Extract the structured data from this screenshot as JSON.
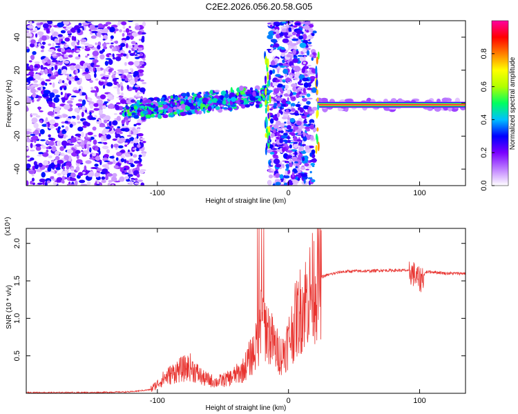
{
  "title": "C2E2.2026.056.20.58.G05",
  "chart_data": [
    {
      "type": "heatmap",
      "title": "",
      "xlabel": "Height of straight line (km)",
      "ylabel": "Frequency (Hz)",
      "xlim": [
        -200,
        135
      ],
      "ylim": [
        -50,
        50
      ],
      "xticks": [
        -100,
        0,
        100
      ],
      "xtick_labels": [
        "-100",
        "0",
        "100"
      ],
      "yticks": [
        -40,
        -20,
        0,
        20,
        40
      ],
      "ytick_labels": [
        "-40",
        "-20",
        "0",
        "20",
        "40"
      ],
      "colorbar": {
        "label": "Normalized spectral amplitude",
        "range": [
          0,
          1
        ],
        "ticks": [
          0,
          0.2,
          0.4,
          0.6,
          0.8
        ],
        "tick_labels": [
          "0.0",
          "0.2",
          "0.4",
          "0.6",
          "0.8"
        ],
        "colors": [
          "#ffffff",
          "#cc99ff",
          "#7a00ff",
          "#0000ff",
          "#00c0ff",
          "#00ff60",
          "#b0ff00",
          "#ffff00",
          "#ff8000",
          "#ff0000",
          "#ff00a0"
        ]
      },
      "regions": [
        {
          "name": "scatter noise",
          "x": [
            -200,
            -110
          ],
          "freq": [
            -50,
            50
          ],
          "amp": 0.2
        },
        {
          "name": "rising band",
          "x": [
            -125,
            -15
          ],
          "freq_center": [
            -5,
            5
          ],
          "amp": 0.45
        },
        {
          "name": "noise strip",
          "x": [
            -15,
            20
          ],
          "freq": [
            -50,
            50
          ],
          "amp": 0.25
        },
        {
          "name": "steady line",
          "x": [
            22,
            135
          ],
          "freq_center": -1,
          "amp": 0.95
        }
      ]
    },
    {
      "type": "line",
      "title": "",
      "xlabel": "Height of straight line (km)",
      "ylabel": "SNR (10 * v/v)",
      "y_multiplier": "(x10⁴)",
      "xlim": [
        -200,
        135
      ],
      "ylim": [
        0,
        2.2
      ],
      "xticks": [
        -100,
        0,
        100
      ],
      "xtick_labels": [
        "-100",
        "0",
        "100"
      ],
      "yticks": [
        0.5,
        1.0,
        1.5,
        2.0
      ],
      "ytick_labels": [
        "0.5",
        "1.0",
        "1.5",
        "2.0"
      ],
      "color": "#e8322e",
      "series": [
        {
          "name": "SNR",
          "x": [
            -200,
            -150,
            -120,
            -105,
            -95,
            -85,
            -75,
            -65,
            -55,
            -45,
            -35,
            -25,
            -20,
            -15,
            -10,
            -5,
            0,
            5,
            10,
            15,
            20,
            25,
            30,
            40,
            50,
            60,
            70,
            80,
            90,
            95,
            100,
            105,
            110,
            120,
            135
          ],
          "y": [
            0.01,
            0.01,
            0.02,
            0.05,
            0.2,
            0.3,
            0.35,
            0.2,
            0.15,
            0.2,
            0.3,
            0.6,
            1.0,
            0.8,
            0.6,
            0.5,
            0.7,
            0.95,
            1.15,
            1.3,
            1.45,
            1.55,
            1.58,
            1.62,
            1.63,
            1.63,
            1.64,
            1.64,
            1.64,
            1.6,
            1.5,
            1.62,
            1.62,
            1.6,
            1.6
          ]
        }
      ]
    }
  ]
}
